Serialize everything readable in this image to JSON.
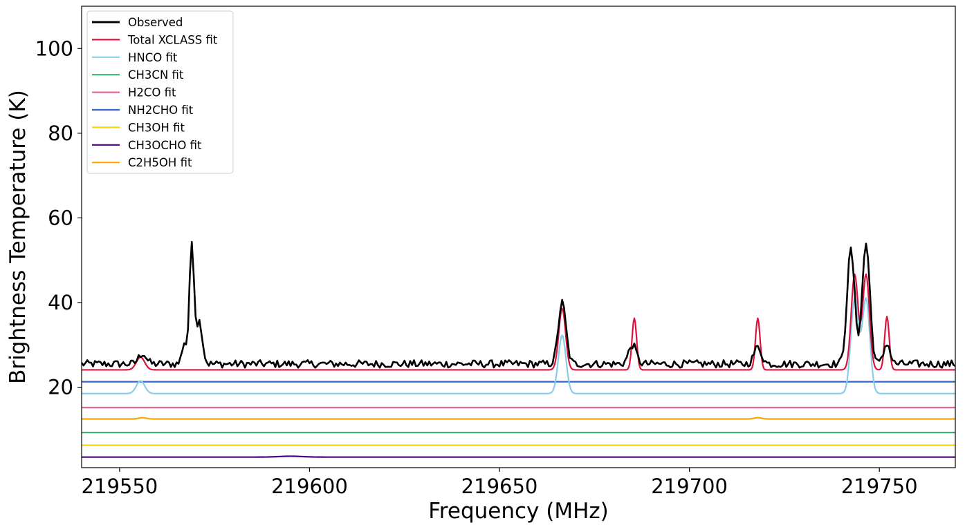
{
  "chart_data": {
    "type": "line",
    "title": "",
    "xlabel": "Frequency (MHz)",
    "ylabel": "Brightness Temperature (K)",
    "xlim": [
      219540,
      219770
    ],
    "ylim": [
      1,
      110
    ],
    "xticks": [
      219550,
      219600,
      219650,
      219700,
      219750
    ],
    "xtick_labels": [
      "219550",
      "219600",
      "219650",
      "219700",
      "219750"
    ],
    "yticks": [
      20,
      40,
      60,
      80,
      100
    ],
    "ytick_labels": [
      "20",
      "40",
      "60",
      "80",
      "100"
    ],
    "grid": false,
    "legend_position": "top-left",
    "series": [
      {
        "name": "Observed",
        "color": "#000000",
        "baseline": 25.5,
        "noise": 0.9,
        "peaks": [
          {
            "x": 219556,
            "amp": 2.5,
            "width": 1.0
          },
          {
            "x": 219569,
            "amp": 28.5,
            "width": 0.6
          },
          {
            "x": 219571,
            "amp": 10,
            "width": 0.8
          },
          {
            "x": 219567,
            "amp": 5,
            "width": 0.6
          },
          {
            "x": 219666.5,
            "amp": 14.5,
            "width": 1.0
          },
          {
            "x": 219685,
            "amp": 4.5,
            "width": 1.0
          },
          {
            "x": 219718,
            "amp": 4,
            "width": 1.0
          },
          {
            "x": 219742.5,
            "amp": 27,
            "width": 1.0
          },
          {
            "x": 219746.5,
            "amp": 28.5,
            "width": 1.0
          },
          {
            "x": 219752,
            "amp": 5,
            "width": 0.8
          }
        ]
      },
      {
        "name": "Total XCLASS fit",
        "color": "#dc143c",
        "baseline": 24.1,
        "peaks": [
          {
            "x": 219555.5,
            "amp": 3.0,
            "width": 1.1
          },
          {
            "x": 219666.5,
            "amp": 14.5,
            "width": 0.9
          },
          {
            "x": 219685.5,
            "amp": 12.2,
            "width": 0.6
          },
          {
            "x": 219718,
            "amp": 12.2,
            "width": 0.6
          },
          {
            "x": 219743.5,
            "amp": 22.5,
            "width": 0.9
          },
          {
            "x": 219746.5,
            "amp": 22.5,
            "width": 0.9
          },
          {
            "x": 219752,
            "amp": 12.6,
            "width": 0.6
          }
        ]
      },
      {
        "name": "HNCO fit",
        "color": "#87ceeb",
        "baseline": 18.5,
        "peaks": [
          {
            "x": 219555.5,
            "amp": 3.0,
            "width": 1.1
          },
          {
            "x": 219666.5,
            "amp": 13.8,
            "width": 1.0
          },
          {
            "x": 219743.5,
            "amp": 22.3,
            "width": 1.0
          },
          {
            "x": 219746.5,
            "amp": 22.3,
            "width": 1.0
          }
        ]
      },
      {
        "name": "CH3CN fit",
        "color": "#3cb371",
        "baseline": 9.3,
        "peaks": []
      },
      {
        "name": "H2CO fit",
        "color": "#e66a8c",
        "baseline": 15.2,
        "peaks": []
      },
      {
        "name": "NH2CHO fit",
        "color": "#3366cc",
        "baseline": 21.3,
        "peaks": []
      },
      {
        "name": "CH3OH fit",
        "color": "#ffd700",
        "baseline": 6.3,
        "peaks": []
      },
      {
        "name": "CH3OCHO fit",
        "color": "#4b0082",
        "baseline": 3.5,
        "peaks": [
          {
            "x": 219595,
            "amp": 0.2,
            "width": 3
          }
        ]
      },
      {
        "name": "C2H5OH fit",
        "color": "#ffa500",
        "baseline": 12.5,
        "peaks": [
          {
            "x": 219556,
            "amp": 0.3,
            "width": 1
          },
          {
            "x": 219718,
            "amp": 0.3,
            "width": 1
          }
        ]
      }
    ]
  }
}
